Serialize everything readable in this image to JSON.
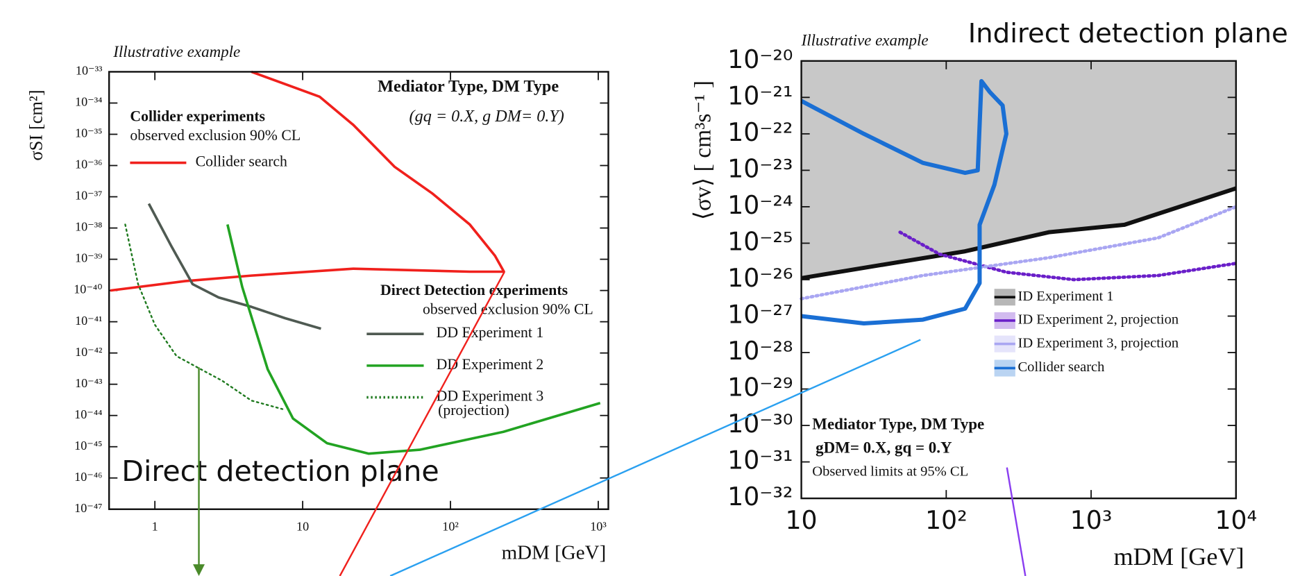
{
  "chart_data": [
    {
      "type": "line",
      "title": "Illustrative example",
      "log_x": true,
      "log_y": true,
      "x_label": "mDM [GeV]",
      "y_label": "σSI [cm²]",
      "xlim": [
        0.49,
        1170
      ],
      "ylim": [
        1e-47,
        1e-33
      ],
      "xticks": [
        1,
        10,
        {
          "value": 100,
          "label": "10²"
        },
        {
          "value": 1000,
          "label": "10³"
        }
      ],
      "yticks": [
        {
          "value": 1e-33,
          "label": "10⁻³³"
        },
        {
          "value": 1e-34,
          "label": "10⁻³⁴"
        },
        {
          "value": 1e-35,
          "label": "10⁻³⁵"
        },
        {
          "value": 1e-36,
          "label": "10⁻³⁶"
        },
        {
          "value": 1e-37,
          "label": "10⁻³⁷"
        },
        {
          "value": 1e-38,
          "label": "10⁻³⁸"
        },
        {
          "value": 1e-39,
          "label": "10⁻³⁹"
        },
        {
          "value": 1e-40,
          "label": "10⁻⁴⁰"
        },
        {
          "value": 1e-41,
          "label": "10⁻⁴¹"
        },
        {
          "value": 1e-42,
          "label": "10⁻⁴²"
        },
        {
          "value": 1e-43,
          "label": "10⁻⁴³"
        },
        {
          "value": 1e-44,
          "label": "10⁻⁴⁴"
        },
        {
          "value": 1e-45,
          "label": "10⁻⁴⁵"
        },
        {
          "value": 1e-46,
          "label": "10⁻⁴⁶"
        },
        {
          "value": 1e-47,
          "label": "10⁻⁴⁷"
        }
      ],
      "series": [
        {
          "name": "Collider search",
          "color": "#f0201c",
          "style": "solid",
          "x": [
            0.5,
            1.6,
            4.5,
            22,
            135,
            230,
            200,
            135,
            75,
            42,
            22,
            13,
            4.5
          ],
          "values": [
            1e-40,
            2e-40,
            3e-40,
            5e-40,
            4e-40,
            4e-40,
            1.3e-39,
            1.3e-38,
            1.3e-37,
            9e-37,
            2e-35,
            1.6e-34,
            1e-33
          ]
        },
        {
          "name": "DD Experiment 1",
          "color": "#4f5a52",
          "style": "solid",
          "x": [
            0.91,
            1.3,
            1.8,
            2.7,
            4.5,
            7.6,
            13.3
          ],
          "values": [
            6e-38,
            2.5e-39,
            1.6e-40,
            6e-41,
            3e-41,
            1.3e-41,
            6e-42
          ]
        },
        {
          "name": "DD Experiment 2",
          "color": "#22a322",
          "style": "solid",
          "x": [
            3.1,
            3.9,
            5.8,
            8.6,
            14.6,
            28,
            62,
            228,
            1030
          ],
          "values": [
            1.3e-38,
            1.3e-40,
            3e-43,
            8e-45,
            1.3e-45,
            6e-46,
            8e-46,
            3e-45,
            2.5e-44
          ]
        },
        {
          "name": "DD Experiment 3",
          "color": "#1f7a1f",
          "style": "dotted",
          "x": [
            0.63,
            0.77,
            1,
            1.4,
            2.05,
            2.85,
            4.5,
            7.3
          ],
          "values": [
            1.3e-38,
            1.6e-40,
            8e-42,
            8e-43,
            3e-43,
            1.3e-43,
            3e-44,
            1.6e-44
          ]
        }
      ],
      "annotations": [
        "Mediator Type, DM Type",
        "(gq = 0.X, g DM= 0.Y)",
        "Collider experiments",
        "observed exclusion 90% CL",
        "Direct Detection experiments",
        "observed exclusion 90% CL",
        "(projection)",
        "Direct detection plane"
      ]
    },
    {
      "type": "line",
      "title": "Illustrative example",
      "log_x": true,
      "log_y": true,
      "x_label": "mDM [GeV]",
      "y_label": "⟨σv⟩ [ cm³s⁻¹ ]",
      "xlim": [
        10,
        10000
      ],
      "ylim": [
        1e-32,
        1e-20
      ],
      "xticks": [
        10,
        {
          "value": 100,
          "label": "10²"
        },
        {
          "value": 1000,
          "label": "10³"
        },
        {
          "value": 10000,
          "label": "10⁴"
        }
      ],
      "yticks": [
        {
          "value": 1e-20,
          "label": "10⁻²⁰"
        },
        {
          "value": 1e-21,
          "label": "10⁻²¹"
        },
        {
          "value": 1e-22,
          "label": "10⁻²²"
        },
        {
          "value": 1e-23,
          "label": "10⁻²³"
        },
        {
          "value": 1e-24,
          "label": "10⁻²⁴"
        },
        {
          "value": 1e-25,
          "label": "10⁻²⁵"
        },
        {
          "value": 1e-26,
          "label": "10⁻²⁶"
        },
        {
          "value": 1e-27,
          "label": "10⁻²⁷"
        },
        {
          "value": 1e-28,
          "label": "10⁻²⁸"
        },
        {
          "value": 1e-29,
          "label": "10⁻²⁹"
        },
        {
          "value": 1e-30,
          "label": "10⁻³⁰"
        },
        {
          "value": 1e-31,
          "label": "10⁻³¹"
        },
        {
          "value": 1e-32,
          "label": "10⁻³²"
        }
      ],
      "series": [
        {
          "name": "ID Experiment 1",
          "color": "#111111",
          "style": "solid",
          "shade": "#c8c8c8",
          "x": [
            10,
            35,
            135,
            510,
            1700,
            10000
          ],
          "values": [
            1.1e-26,
            2.5e-26,
            6e-26,
            2e-25,
            3.2e-25,
            3.2e-24
          ]
        },
        {
          "name": "ID Experiment 2, projection",
          "color": "#6a1fc9",
          "style": "dotted",
          "x": [
            48,
            90,
            260,
            760,
            2900,
            10000
          ],
          "values": [
            2e-25,
            5e-26,
            1.6e-26,
            1e-26,
            1.3e-26,
            2.8e-26
          ]
        },
        {
          "name": "ID Experiment 3, projection",
          "color": "#a9a6f2",
          "style": "dotted",
          "x": [
            10,
            69,
            510,
            2900,
            10000
          ],
          "values": [
            3e-27,
            1.3e-26,
            4e-26,
            1.4e-25,
            1e-24
          ]
        },
        {
          "name": "Collider search",
          "color": "#1a6fd4",
          "style": "solid",
          "x": [
            10,
            27,
            69,
            135,
            165,
            175,
            200,
            245,
            260,
            215,
            170,
            170,
            135,
            69,
            27,
            10
          ],
          "values": [
            8e-22,
            1e-22,
            1.6e-23,
            8.5e-24,
            1e-23,
            2.8e-21,
            1.4e-21,
            6e-22,
            1e-22,
            4e-24,
            3.2e-25,
            8e-27,
            1.6e-27,
            8e-28,
            6.3e-28,
            1e-27
          ]
        }
      ],
      "annotations": [
        "Indirect detection plane",
        "Mediator Type, DM Type",
        "gDM= 0.X, gq = 0.Y",
        "Observed limits at 95% CL"
      ]
    }
  ]
}
